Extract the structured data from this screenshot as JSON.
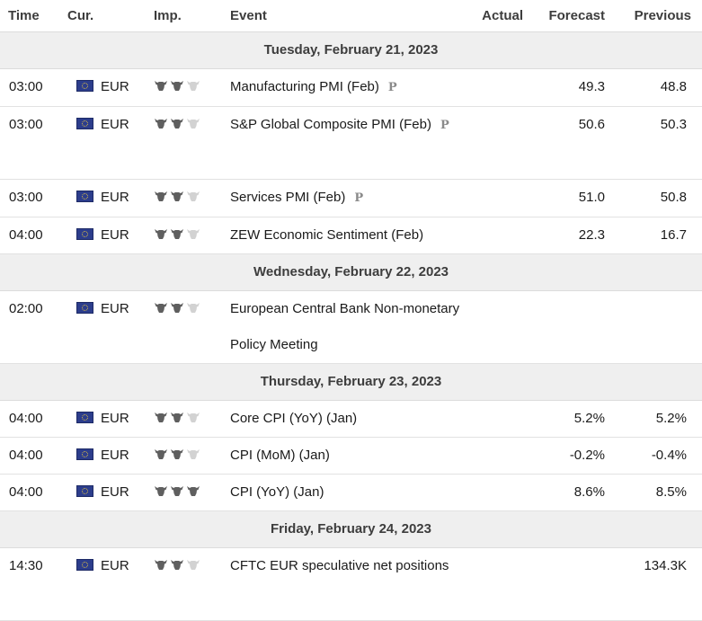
{
  "columns": {
    "time": "Time",
    "currency": "Cur.",
    "importance": "Imp.",
    "event": "Event",
    "actual": "Actual",
    "forecast": "Forecast",
    "previous": "Previous"
  },
  "icons": {
    "flag": "eu-flag-icon",
    "importance": "bull-icon",
    "preliminary": "preliminary-release-icon"
  },
  "preliminary_mark": "P",
  "days": [
    {
      "date": "Tuesday, February 21, 2023",
      "events": [
        {
          "time": "03:00",
          "currency": "EUR",
          "importance": 2,
          "title": "Manufacturing PMI (Feb)",
          "preliminary": true,
          "actual": "",
          "forecast": "49.3",
          "previous": "48.8"
        },
        {
          "time": "03:00",
          "currency": "EUR",
          "importance": 2,
          "title": "S&P Global Composite PMI (Feb)",
          "preliminary": true,
          "actual": "",
          "forecast": "50.6",
          "previous": "50.3",
          "tall": true
        },
        {
          "time": "03:00",
          "currency": "EUR",
          "importance": 2,
          "title": "Services PMI (Feb)",
          "preliminary": true,
          "actual": "",
          "forecast": "51.0",
          "previous": "50.8"
        },
        {
          "time": "04:00",
          "currency": "EUR",
          "importance": 2,
          "title": "ZEW Economic Sentiment (Feb)",
          "preliminary": false,
          "actual": "",
          "forecast": "22.3",
          "previous": "16.7"
        }
      ]
    },
    {
      "date": "Wednesday, February 22, 2023",
      "events": [
        {
          "time": "02:00",
          "currency": "EUR",
          "importance": 2,
          "title": "European Central Bank Non-monetary Policy Meeting",
          "preliminary": false,
          "actual": "",
          "forecast": "",
          "previous": "",
          "tall": true
        }
      ]
    },
    {
      "date": "Thursday, February 23, 2023",
      "events": [
        {
          "time": "04:00",
          "currency": "EUR",
          "importance": 2,
          "title": "Core CPI (YoY) (Jan)",
          "preliminary": false,
          "actual": "",
          "forecast": "5.2%",
          "previous": "5.2%"
        },
        {
          "time": "04:00",
          "currency": "EUR",
          "importance": 2,
          "title": "CPI (MoM) (Jan)",
          "preliminary": false,
          "actual": "",
          "forecast": "-0.2%",
          "previous": "-0.4%"
        },
        {
          "time": "04:00",
          "currency": "EUR",
          "importance": 3,
          "title": "CPI (YoY) (Jan)",
          "preliminary": false,
          "actual": "",
          "forecast": "8.6%",
          "previous": "8.5%"
        }
      ]
    },
    {
      "date": "Friday, February 24, 2023",
      "events": [
        {
          "time": "14:30",
          "currency": "EUR",
          "importance": 2,
          "title": "CFTC EUR speculative net positions",
          "preliminary": false,
          "actual": "",
          "forecast": "",
          "previous": "134.3K",
          "tall": true
        }
      ]
    }
  ]
}
